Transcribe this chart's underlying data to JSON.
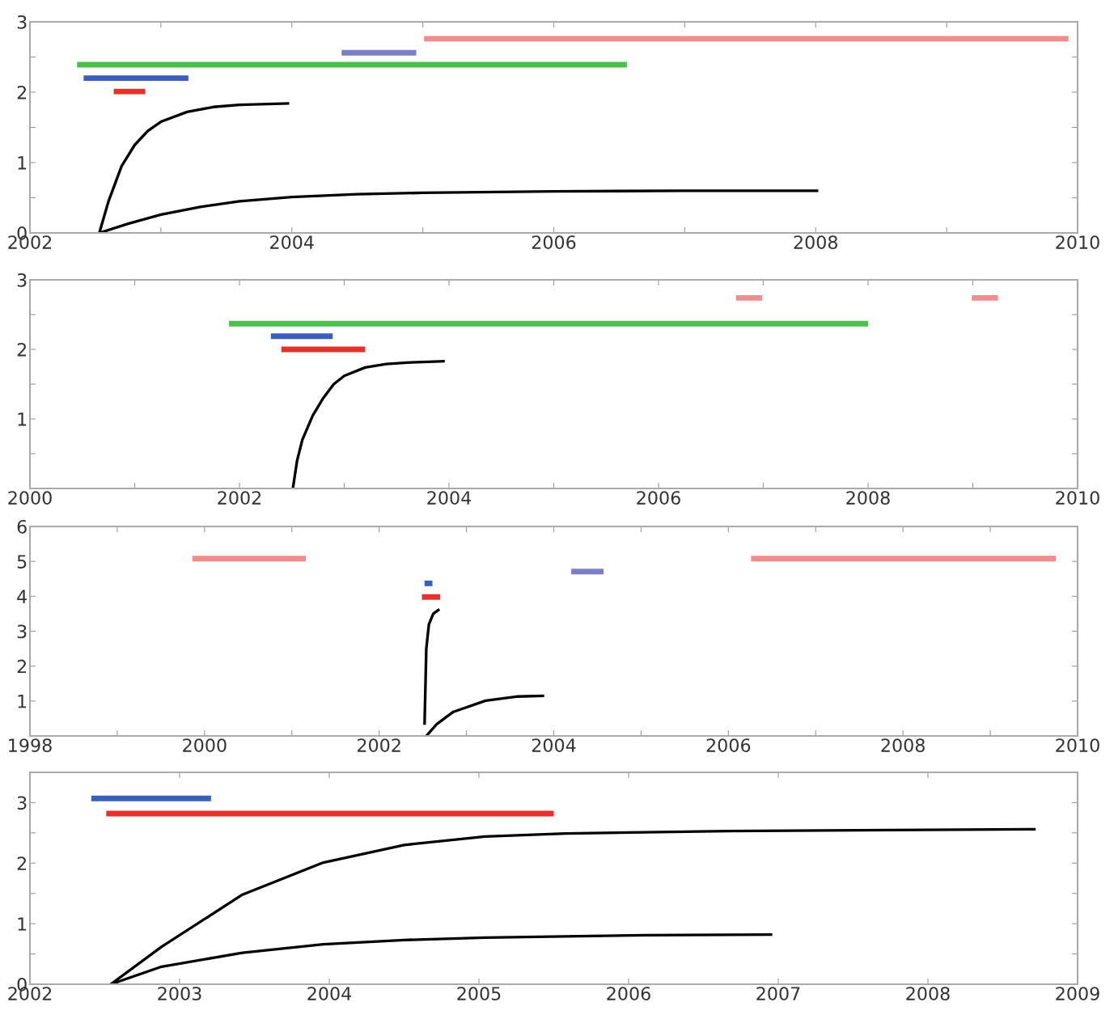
{
  "chart_data": [
    {
      "type": "line",
      "xlim": [
        2002,
        2010
      ],
      "xticks": [
        2002,
        {
          "value": 2003,
          "label": null
        },
        2004,
        {
          "value": 2005,
          "label": null
        },
        2006,
        {
          "value": 2007,
          "label": null
        },
        2008,
        {
          "value": 2009,
          "label": null
        },
        2010
      ],
      "ylim": [
        0,
        3
      ],
      "yticks": [
        0,
        {
          "value": 0.5,
          "label": null
        },
        1,
        {
          "value": 1.5,
          "label": null
        },
        2,
        {
          "value": 2.5,
          "label": null
        },
        3
      ],
      "grid": false,
      "legend": false,
      "line_style": "solid",
      "marker": "none",
      "series": [
        {
          "color": "#f08c8c",
          "x": [
            2005.01,
            2009.93
          ],
          "values": [
            2.76,
            2.76
          ]
        },
        {
          "color": "#7a7fc6",
          "x": [
            2004.38,
            2004.95
          ],
          "values": [
            2.56,
            2.56
          ]
        },
        {
          "color": "#4cbf4c",
          "x": [
            2002.36,
            2006.56
          ],
          "values": [
            2.39,
            2.39
          ]
        },
        {
          "color": "#3a5fb8",
          "x": [
            2002.41,
            2003.21
          ],
          "values": [
            2.2,
            2.2
          ]
        },
        {
          "color": "#e8302a",
          "x": [
            2002.64,
            2002.88
          ],
          "values": [
            2.01,
            2.01
          ]
        },
        {
          "color": "#000000",
          "x": [
            2002.53,
            2002.6,
            2002.7,
            2002.8,
            2002.9,
            2003.0,
            2003.2,
            2003.4,
            2003.6,
            2003.98
          ],
          "values": [
            0,
            0.45,
            0.95,
            1.25,
            1.45,
            1.58,
            1.72,
            1.79,
            1.82,
            1.84
          ]
        },
        {
          "color": "#000000",
          "x": [
            2002.53,
            2002.75,
            2003.0,
            2003.3,
            2003.6,
            2004.0,
            2004.5,
            2005.0,
            2006.0,
            2007.0,
            2008.02
          ],
          "values": [
            0,
            0.13,
            0.26,
            0.37,
            0.45,
            0.51,
            0.55,
            0.57,
            0.59,
            0.6,
            0.6
          ]
        }
      ]
    },
    {
      "type": "line",
      "xlim": [
        2000,
        2010
      ],
      "xticks": [
        2000,
        {
          "value": 2001,
          "label": null
        },
        2002,
        {
          "value": 2003,
          "label": null
        },
        2004,
        {
          "value": 2005,
          "label": null
        },
        2006,
        {
          "value": 2007,
          "label": null
        },
        2008,
        {
          "value": 2009,
          "label": null
        },
        2010
      ],
      "ylim": [
        0,
        3
      ],
      "yticks": [
        {
          "value": 0.5,
          "label": null
        },
        1,
        {
          "value": 1.5,
          "label": null
        },
        2,
        {
          "value": 2.5,
          "label": null
        },
        3
      ],
      "grid": false,
      "legend": false,
      "line_style": "solid",
      "marker": "none",
      "series": [
        {
          "color": "#f08c8c",
          "x": [
            2006.74,
            2006.99
          ],
          "values": [
            2.74,
            2.74
          ]
        },
        {
          "color": "#f08c8c",
          "x": [
            2008.99,
            2009.24
          ],
          "values": [
            2.74,
            2.74
          ]
        },
        {
          "color": "#4cbf4c",
          "x": [
            2001.9,
            2008.0
          ],
          "values": [
            2.37,
            2.37
          ]
        },
        {
          "color": "#3a5fb8",
          "x": [
            2002.3,
            2002.89
          ],
          "values": [
            2.19,
            2.19
          ]
        },
        {
          "color": "#e8302a",
          "x": [
            2002.4,
            2003.2
          ],
          "values": [
            2.0,
            2.0
          ]
        },
        {
          "color": "#000000",
          "x": [
            2002.51,
            2002.55,
            2002.6,
            2002.7,
            2002.8,
            2002.9,
            2003.0,
            2003.2,
            2003.4,
            2003.6,
            2003.96
          ],
          "values": [
            0,
            0.4,
            0.7,
            1.05,
            1.3,
            1.5,
            1.62,
            1.74,
            1.79,
            1.81,
            1.83
          ]
        }
      ]
    },
    {
      "type": "line",
      "xlim": [
        1998,
        2010
      ],
      "xticks": [
        1998,
        {
          "value": 1999,
          "label": null
        },
        2000,
        {
          "value": 2001,
          "label": null
        },
        2002,
        {
          "value": 2003,
          "label": null
        },
        2004,
        {
          "value": 2005,
          "label": null
        },
        2006,
        {
          "value": 2007,
          "label": null
        },
        2008,
        {
          "value": 2009,
          "label": null
        },
        2010
      ],
      "ylim": [
        0,
        6
      ],
      "yticks": [
        1,
        2,
        3,
        4,
        5,
        6
      ],
      "grid": false,
      "legend": false,
      "line_style": "solid",
      "marker": "none",
      "series": [
        {
          "color": "#f08c8c",
          "x": [
            1999.86,
            2001.16
          ],
          "values": [
            5.08,
            5.08
          ]
        },
        {
          "color": "#f08c8c",
          "x": [
            2006.26,
            2009.75
          ],
          "values": [
            5.08,
            5.08
          ]
        },
        {
          "color": "#7a7fc6",
          "x": [
            2004.2,
            2004.57
          ],
          "values": [
            4.71,
            4.71
          ]
        },
        {
          "color": "#3a5fb8",
          "x": [
            2002.52,
            2002.61
          ],
          "values": [
            4.37,
            4.37
          ]
        },
        {
          "color": "#e8302a",
          "x": [
            2002.49,
            2002.7
          ],
          "values": [
            3.98,
            3.98
          ]
        },
        {
          "color": "#000000",
          "x": [
            2002.52,
            2002.54,
            2002.57,
            2002.62,
            2002.69
          ],
          "values": [
            0.32,
            2.5,
            3.2,
            3.5,
            3.63
          ]
        },
        {
          "color": "#000000",
          "x": [
            2002.54,
            2002.66,
            2002.85,
            2003.22,
            2003.59,
            2003.89
          ],
          "values": [
            0,
            0.34,
            0.69,
            1.01,
            1.13,
            1.15
          ]
        }
      ]
    },
    {
      "type": "line",
      "xlim": [
        2002,
        2009
      ],
      "xticks": [
        2002,
        2003,
        2004,
        2005,
        2006,
        2007,
        2008,
        2009
      ],
      "ylim": [
        0,
        3.5
      ],
      "yticks": [
        0,
        {
          "value": 0.5,
          "label": null
        },
        1,
        {
          "value": 1.5,
          "label": null
        },
        2,
        {
          "value": 2.5,
          "label": null
        },
        3
      ],
      "grid": false,
      "legend": false,
      "line_style": "solid",
      "marker": "none",
      "series": [
        {
          "color": "#3a5fb8",
          "x": [
            2002.41,
            2003.21
          ],
          "values": [
            3.07,
            3.07
          ]
        },
        {
          "color": "#e8302a",
          "x": [
            2002.51,
            2005.5
          ],
          "values": [
            2.82,
            2.82
          ]
        },
        {
          "color": "#000000",
          "x": [
            2002.54,
            2002.88,
            2003.42,
            2003.96,
            2004.5,
            2005.04,
            2005.58,
            2006.66,
            2008.72
          ],
          "values": [
            0,
            0.62,
            1.48,
            2.01,
            2.3,
            2.44,
            2.49,
            2.53,
            2.56
          ]
        },
        {
          "color": "#000000",
          "x": [
            2002.54,
            2002.88,
            2003.42,
            2003.96,
            2004.5,
            2005.04,
            2006.12,
            2006.96
          ],
          "values": [
            0,
            0.29,
            0.52,
            0.66,
            0.73,
            0.77,
            0.81,
            0.82
          ]
        }
      ]
    }
  ]
}
